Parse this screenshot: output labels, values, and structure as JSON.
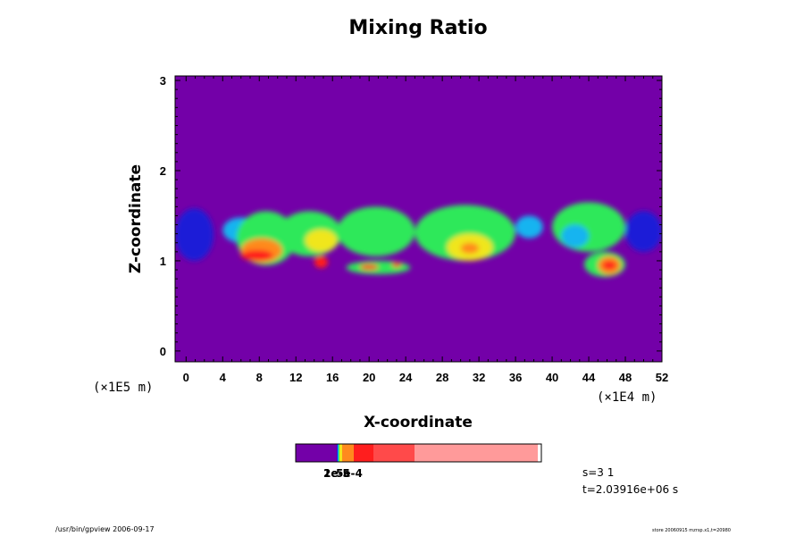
{
  "chart_data": {
    "type": "heatmap",
    "title": "Mixing Ratio",
    "xlabel": "X-coordinate",
    "ylabel": "Z-coordinate",
    "x_unit": "(×1E4 m)",
    "y_unit": "(×1E5 m)",
    "xlim": [
      -1.2,
      52
    ],
    "ylim": [
      -0.12,
      3.05
    ],
    "x_ticks": [
      "0",
      "4",
      "8",
      "12",
      "16",
      "20",
      "24",
      "28",
      "32",
      "36",
      "40",
      "44",
      "48",
      "52"
    ],
    "y_ticks": [
      "0",
      "1",
      "2",
      "3"
    ],
    "background_level": "0",
    "levels": [
      "background",
      "blue",
      "cyan",
      "green",
      "yellow",
      "orange",
      "red"
    ],
    "colors": {
      "background": "#7300a8",
      "blue": "#1e1ed7",
      "cyan": "#19b4f0",
      "green": "#2ee85a",
      "yellow": "#f0e61e",
      "orange": "#ff8a1e",
      "red": "#ff1e1e"
    },
    "features": [
      {
        "x0": -1.2,
        "x1": 3.0,
        "zmin": 1.0,
        "zmax": 1.58,
        "level": "blue"
      },
      {
        "x0": 4.0,
        "x1": 8.0,
        "zmin": 1.2,
        "zmax": 1.48,
        "level": "cyan"
      },
      {
        "x0": 5.5,
        "x1": 12.0,
        "zmin": 0.95,
        "zmax": 1.55,
        "level": "green"
      },
      {
        "x0": 6.0,
        "x1": 10.5,
        "zmin": 0.98,
        "zmax": 1.25,
        "level": "orange"
      },
      {
        "x0": 6.0,
        "x1": 9.5,
        "zmin": 1.0,
        "zmax": 1.12,
        "level": "red"
      },
      {
        "x0": 10.0,
        "x1": 17.0,
        "zmin": 1.05,
        "zmax": 1.55,
        "level": "green"
      },
      {
        "x0": 13.0,
        "x1": 16.5,
        "zmin": 1.1,
        "zmax": 1.35,
        "level": "yellow"
      },
      {
        "x0": 14.0,
        "x1": 15.5,
        "zmin": 0.92,
        "zmax": 1.05,
        "level": "red"
      },
      {
        "x0": 17.5,
        "x1": 24.5,
        "zmin": 0.85,
        "zmax": 1.0,
        "level": "green"
      },
      {
        "x0": 19.0,
        "x1": 21.0,
        "zmin": 0.9,
        "zmax": 0.96,
        "level": "red"
      },
      {
        "x0": 22.5,
        "x1": 23.5,
        "zmin": 0.93,
        "zmax": 0.98,
        "level": "red"
      },
      {
        "x0": 16.5,
        "x1": 25.0,
        "zmin": 1.05,
        "zmax": 1.6,
        "level": "green"
      },
      {
        "x0": 25.0,
        "x1": 36.0,
        "zmin": 1.0,
        "zmax": 1.62,
        "level": "green"
      },
      {
        "x0": 28.5,
        "x1": 33.5,
        "zmin": 1.0,
        "zmax": 1.3,
        "level": "yellow"
      },
      {
        "x0": 30.0,
        "x1": 32.0,
        "zmin": 1.08,
        "zmax": 1.2,
        "level": "orange"
      },
      {
        "x0": 36.0,
        "x1": 39.0,
        "zmin": 1.25,
        "zmax": 1.5,
        "level": "cyan"
      },
      {
        "x0": 40.0,
        "x1": 48.0,
        "zmin": 1.1,
        "zmax": 1.65,
        "level": "green"
      },
      {
        "x0": 41.0,
        "x1": 44.0,
        "zmin": 1.15,
        "zmax": 1.4,
        "level": "cyan"
      },
      {
        "x0": 43.5,
        "x1": 48.0,
        "zmin": 0.82,
        "zmax": 1.1,
        "level": "green"
      },
      {
        "x0": 45.0,
        "x1": 47.5,
        "zmin": 0.85,
        "zmax": 1.05,
        "level": "orange"
      },
      {
        "x0": 45.5,
        "x1": 47.0,
        "zmin": 0.9,
        "zmax": 1.0,
        "level": "red"
      },
      {
        "x0": 48.0,
        "x1": 52.0,
        "zmin": 1.1,
        "zmax": 1.55,
        "level": "blue"
      }
    ],
    "colorbar": {
      "segments": [
        {
          "color": "#7300a8",
          "width": 46
        },
        {
          "color": "#1e1ed7",
          "width": 1
        },
        {
          "color": "#19b4f0",
          "width": 1
        },
        {
          "color": "#2ee85a",
          "width": 1
        },
        {
          "color": "#f0e61e",
          "width": 3
        },
        {
          "color": "#ff8a1e",
          "width": 13
        },
        {
          "color": "#ff1e1e",
          "width": 22
        },
        {
          "color": "#ff4a4a",
          "width": 46
        },
        {
          "color": "#ff9a9a",
          "width": 138
        }
      ],
      "tick_labels": [
        "1e-5",
        "2e-5",
        "5e-4"
      ]
    }
  },
  "info": {
    "s_label": "s=3 1",
    "t_label": "t=2.03916e+06 s"
  },
  "footer": {
    "left": "/usr/bin/gpview 2006-09-17",
    "right": "store 20060915 mzrsp.x1,t=20980"
  }
}
